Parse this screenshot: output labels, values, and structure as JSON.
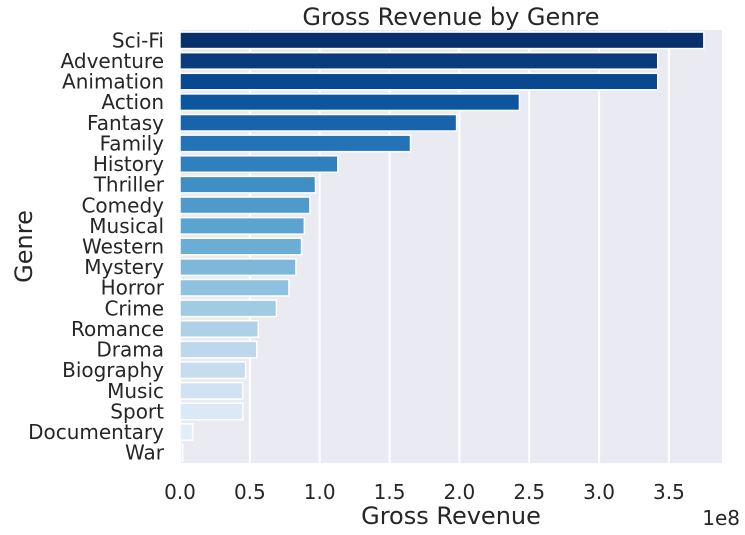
{
  "chart_data": {
    "type": "bar",
    "orientation": "horizontal",
    "title": "Gross Revenue by Genre",
    "xlabel": "Gross Revenue",
    "ylabel": "Genre",
    "x_scale_label": "1e8",
    "xlim": [
      0,
      3.88
    ],
    "x_ticks": [
      "0.0",
      "0.5",
      "1.0",
      "1.5",
      "2.0",
      "2.5",
      "3.0",
      "3.5"
    ],
    "grid": true,
    "palette": "Blues (reversed)",
    "categories": [
      "Sci-Fi",
      "Adventure",
      "Animation",
      "Action",
      "Fantasy",
      "Family",
      "History",
      "Thriller",
      "Comedy",
      "Musical",
      "Western",
      "Mystery",
      "Horror",
      "Crime",
      "Romance",
      "Drama",
      "Biography",
      "Music",
      "Sport",
      "Documentary",
      "War"
    ],
    "values": [
      3.75,
      3.42,
      3.42,
      2.43,
      1.98,
      1.65,
      1.13,
      0.97,
      0.93,
      0.89,
      0.87,
      0.83,
      0.78,
      0.69,
      0.56,
      0.55,
      0.47,
      0.45,
      0.45,
      0.09,
      0.02
    ],
    "colors": [
      "#08306b",
      "#083c7d",
      "#08488e",
      "#0c56a0",
      "#1764ab",
      "#2373b6",
      "#3080bd",
      "#3f8fc5",
      "#4e9acb",
      "#5ba3d0",
      "#6aaed6",
      "#7db8da",
      "#8fc2de",
      "#a0cbe2",
      "#afd1e7",
      "#bdd7ec",
      "#c8dcf0",
      "#d1e2f3",
      "#dbe9f6",
      "#e3eef9",
      "#eaf3fb"
    ]
  }
}
